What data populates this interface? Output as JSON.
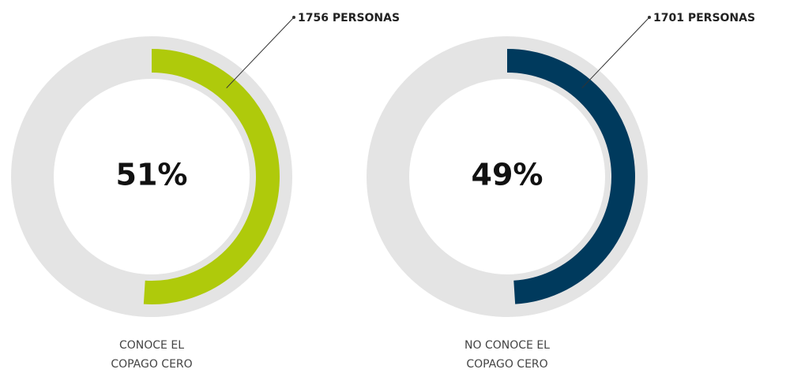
{
  "chart_data": [
    {
      "type": "donut",
      "values": [
        51
      ],
      "value_labels": [
        "51%"
      ],
      "color": "#afca0b",
      "annotation": "1756 PERSONAS",
      "label_lines": [
        "CONOCE EL",
        "COPAGO CERO"
      ]
    },
    {
      "type": "donut",
      "values": [
        49
      ],
      "value_labels": [
        "49%"
      ],
      "color": "#003a5d",
      "annotation": "1701 PERSONAS",
      "label_lines": [
        "NO CONOCE EL",
        "COPAGO CERO"
      ]
    }
  ]
}
